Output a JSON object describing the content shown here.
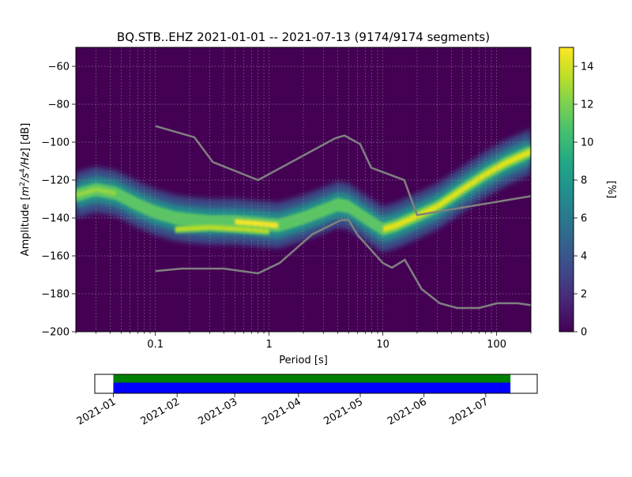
{
  "chart_data": [
    {
      "type": "heatmap",
      "title": "BQ.STB..EHZ   2021-01-01 -- 2021-07-13  (9174/9174 segments)",
      "xlabel": "Period [s]",
      "ylabel": {
        "pre": "Amplitude [",
        "m": "m",
        "e2": "2",
        "s": "/s",
        "e4": "4",
        "hz": "/Hz",
        "post": "] [dB]"
      },
      "x_scale": "log",
      "xlim": [
        0.02,
        200
      ],
      "ylim": [
        -200,
        -50
      ],
      "grid": true,
      "x_ticks": [
        {
          "value": 0.1,
          "label": "0.1"
        },
        {
          "value": 1,
          "label": "1"
        },
        {
          "value": 10,
          "label": "10"
        },
        {
          "value": 100,
          "label": "100"
        }
      ],
      "y_ticks": [
        {
          "value": -60,
          "label": "−60"
        },
        {
          "value": -80,
          "label": "−80"
        },
        {
          "value": -100,
          "label": "−100"
        },
        {
          "value": -120,
          "label": "−120"
        },
        {
          "value": -140,
          "label": "−140"
        },
        {
          "value": -160,
          "label": "−160"
        },
        {
          "value": -180,
          "label": "−180"
        },
        {
          "value": -200,
          "label": "−200"
        }
      ],
      "colorbar": {
        "label": "[%]",
        "range": [
          0,
          15
        ],
        "ticks": [
          {
            "value": 0,
            "label": "0"
          },
          {
            "value": 2,
            "label": "2"
          },
          {
            "value": 4,
            "label": "4"
          },
          {
            "value": 6,
            "label": "6"
          },
          {
            "value": 8,
            "label": "8"
          },
          {
            "value": 10,
            "label": "10"
          },
          {
            "value": 12,
            "label": "12"
          },
          {
            "value": 14,
            "label": "14"
          }
        ]
      },
      "psd_mode": [
        [
          0.02,
          -128
        ],
        [
          0.03,
          -125
        ],
        [
          0.045,
          -127
        ],
        [
          0.07,
          -133
        ],
        [
          0.1,
          -137
        ],
        [
          0.15,
          -140
        ],
        [
          0.2,
          -141
        ],
        [
          0.3,
          -142
        ],
        [
          0.5,
          -142
        ],
        [
          0.8,
          -143
        ],
        [
          1.2,
          -144
        ],
        [
          2,
          -140
        ],
        [
          3,
          -136
        ],
        [
          4,
          -133
        ],
        [
          5,
          -134
        ],
        [
          7,
          -140
        ],
        [
          10,
          -146
        ],
        [
          13,
          -144
        ],
        [
          20,
          -139
        ],
        [
          30,
          -134
        ],
        [
          50,
          -125
        ],
        [
          80,
          -117
        ],
        [
          120,
          -111
        ],
        [
          200,
          -105
        ]
      ],
      "psd_secondary": [
        [
          0.15,
          -146
        ],
        [
          0.3,
          -145
        ],
        [
          0.6,
          -146
        ],
        [
          1,
          -147
        ]
      ],
      "nhnm": [
        [
          0.1,
          -91.5
        ],
        [
          0.22,
          -97.4
        ],
        [
          0.32,
          -110.5
        ],
        [
          0.8,
          -120
        ],
        [
          3.8,
          -98
        ],
        [
          4.6,
          -96.5
        ],
        [
          6.3,
          -101
        ],
        [
          7.9,
          -113.5
        ],
        [
          15.4,
          -120
        ],
        [
          20,
          -138.5
        ],
        [
          200,
          -128.5
        ]
      ],
      "nlnm": [
        [
          0.1,
          -168
        ],
        [
          0.17,
          -166.7
        ],
        [
          0.4,
          -166.7
        ],
        [
          0.8,
          -169.2
        ],
        [
          1.24,
          -163.7
        ],
        [
          2.4,
          -148.6
        ],
        [
          4.3,
          -141.1
        ],
        [
          5,
          -141.1
        ],
        [
          6,
          -149
        ],
        [
          10,
          -163.8
        ],
        [
          12,
          -166.2
        ],
        [
          15.6,
          -162.1
        ],
        [
          21.9,
          -177.5
        ],
        [
          31.6,
          -185
        ],
        [
          45,
          -187.5
        ],
        [
          70,
          -187.5
        ],
        [
          101,
          -185
        ],
        [
          154,
          -185
        ],
        [
          200,
          -186
        ]
      ]
    },
    {
      "type": "timeline",
      "x_ticks": [
        "2021-01",
        "2021-02",
        "2021-03",
        "2021-04",
        "2021-05",
        "2021-06",
        "2021-07"
      ],
      "range_start": "2021-01-01",
      "range_end": "2021-07-13",
      "coverage": [
        {
          "start": "2021-01-01",
          "end": "2021-07-13"
        }
      ],
      "colors": {
        "top": "#008000",
        "bottom": "#0000ff"
      }
    }
  ],
  "colors": {
    "background": "#440154",
    "noise_model": "#808080"
  }
}
